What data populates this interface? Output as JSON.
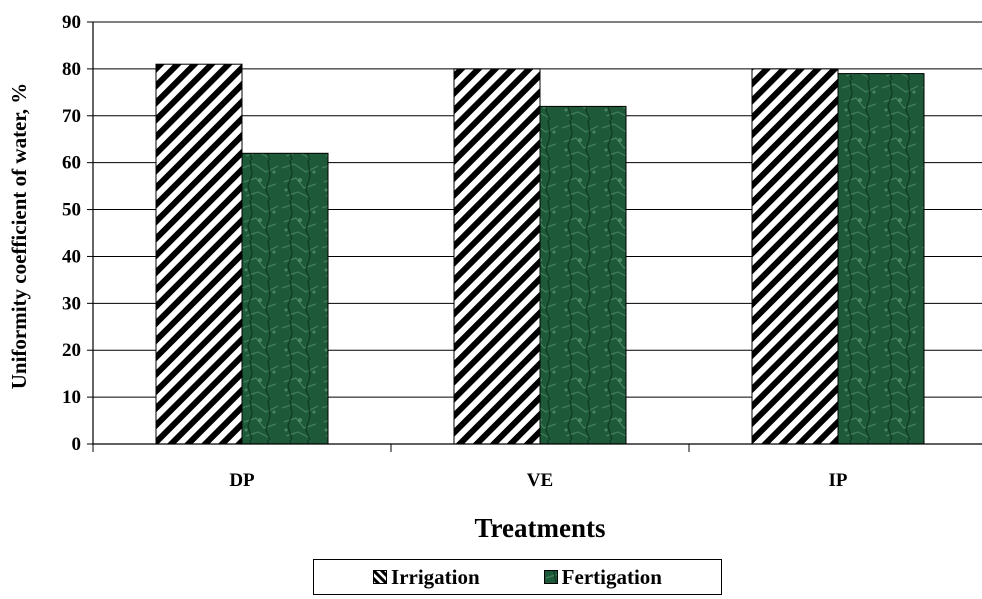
{
  "chart_data": {
    "type": "bar",
    "categories": [
      "DP",
      "VE",
      "IP"
    ],
    "series": [
      {
        "name": "Irrigation",
        "values": [
          81,
          80,
          80
        ]
      },
      {
        "name": "Fertigation",
        "values": [
          62,
          72,
          79
        ]
      }
    ],
    "xlabel": "Treatments",
    "ylabel": "Uniformity coefficient of water, %",
    "ylim": [
      0,
      90
    ],
    "yticks": [
      0,
      10,
      20,
      30,
      40,
      50,
      60,
      70,
      80,
      90
    ],
    "grid": true,
    "legend_position": "bottom"
  },
  "colors": {
    "irrigation_stripe": "#000000",
    "fertigation_base": "#1e5a3a",
    "fertigation_light": "#4c8a60",
    "fertigation_dark": "#0f3a23"
  }
}
